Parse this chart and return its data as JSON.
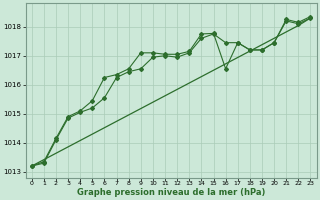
{
  "xlabel": "Graphe pression niveau de la mer (hPa)",
  "background_color": "#cce8d8",
  "grid_color": "#aaccb8",
  "line_color": "#2d6e2d",
  "xlim": [
    -0.5,
    23.5
  ],
  "ylim": [
    1012.8,
    1018.8
  ],
  "yticks": [
    1013,
    1014,
    1015,
    1016,
    1017,
    1018
  ],
  "xticks": [
    0,
    1,
    2,
    3,
    4,
    5,
    6,
    7,
    8,
    9,
    10,
    11,
    12,
    13,
    14,
    15,
    16,
    17,
    18,
    19,
    20,
    21,
    22,
    23
  ],
  "series_straight_x": [
    0,
    1,
    2,
    3,
    4,
    5,
    6,
    7,
    8,
    9,
    10,
    11,
    12,
    13,
    14,
    15,
    16,
    17,
    18,
    19,
    20,
    21,
    22,
    23
  ],
  "series_straight_y": [
    1013.2,
    1013.42,
    1013.64,
    1013.86,
    1014.08,
    1014.3,
    1014.52,
    1014.74,
    1014.96,
    1015.18,
    1015.4,
    1015.62,
    1015.84,
    1016.06,
    1016.28,
    1016.5,
    1016.72,
    1016.94,
    1017.16,
    1017.38,
    1017.6,
    1017.82,
    1018.04,
    1018.3
  ],
  "series_jagged1_x": [
    0,
    1,
    2,
    3,
    4,
    5,
    6,
    7,
    8,
    9,
    10,
    11,
    12,
    13,
    14,
    15,
    16,
    17,
    18,
    19,
    20,
    21,
    22,
    23
  ],
  "series_jagged1_y": [
    1013.2,
    1013.3,
    1014.1,
    1014.85,
    1015.05,
    1015.2,
    1015.55,
    1016.25,
    1016.45,
    1016.55,
    1016.95,
    1017.0,
    1016.95,
    1017.1,
    1017.6,
    1017.75,
    1017.45,
    1017.45,
    1017.2,
    1017.2,
    1017.45,
    1018.2,
    1018.1,
    1018.3
  ],
  "series_jagged2_x": [
    0,
    1,
    2,
    3,
    4,
    5,
    6,
    7,
    8,
    9,
    10,
    11,
    12,
    13,
    14,
    15,
    16,
    17,
    18,
    19,
    20,
    21,
    22,
    23
  ],
  "series_jagged2_y": [
    1013.2,
    1013.35,
    1014.15,
    1014.9,
    1015.1,
    1015.45,
    1016.25,
    1016.35,
    1016.55,
    1017.1,
    1017.1,
    1017.05,
    1017.05,
    1017.15,
    1017.75,
    1017.77,
    1016.55,
    1017.45,
    1017.2,
    1017.2,
    1017.45,
    1018.25,
    1018.15,
    1018.35
  ]
}
